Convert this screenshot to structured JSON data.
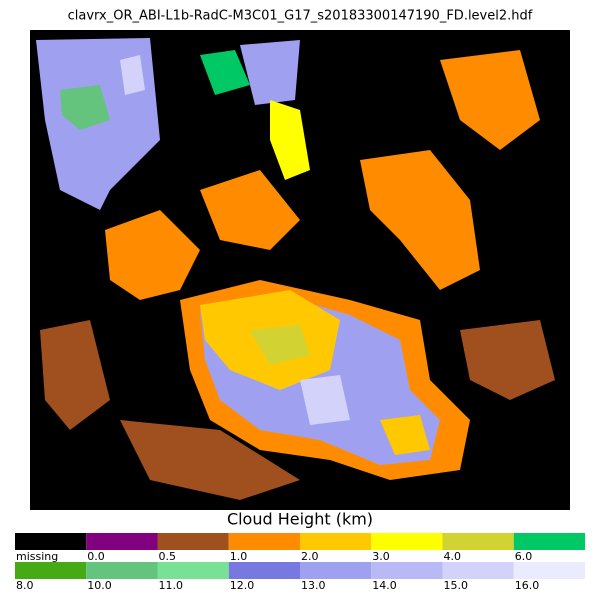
{
  "image": {
    "title": "clavrx_OR_ABI-L1b-RadC-M3C01_G17_s20183300147190_FD.level2.hdf",
    "colorbar": {
      "title": "Cloud Height (km)",
      "rows": [
        [
          {
            "label": "missing",
            "color": "#000000"
          },
          {
            "label": "0.0",
            "color": "#800080"
          },
          {
            "label": "0.5",
            "color": "#a0501e"
          },
          {
            "label": "1.0",
            "color": "#ff8c00"
          },
          {
            "label": "2.0",
            "color": "#ffc800"
          },
          {
            "label": "3.0",
            "color": "#ffff00"
          },
          {
            "label": "4.0",
            "color": "#d2d232"
          },
          {
            "label": "6.0",
            "color": "#00c864"
          }
        ],
        [
          {
            "label": "8.0",
            "color": "#46aa14"
          },
          {
            "label": "10.0",
            "color": "#64c37d"
          },
          {
            "label": "11.0",
            "color": "#78e196"
          },
          {
            "label": "12.0",
            "color": "#7878e1"
          },
          {
            "label": "13.0",
            "color": "#a0a0f0"
          },
          {
            "label": "14.0",
            "color": "#b9b9f5"
          },
          {
            "label": "15.0",
            "color": "#d2d2fa"
          },
          {
            "label": "16.0",
            "color": "#ebebff"
          }
        ]
      ]
    }
  }
}
